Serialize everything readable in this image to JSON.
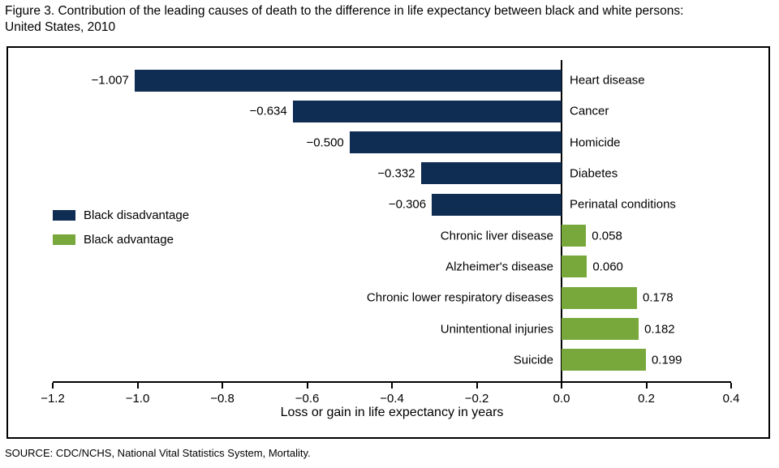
{
  "page": {
    "title_line1": "Figure 3. Contribution of the leading causes of death to the difference in life expectancy between black and white persons:",
    "title_line2": "United States, 2010",
    "source": "SOURCE: CDC/NCHS, National Vital Statistics System, Mortality."
  },
  "chart_data": {
    "type": "bar",
    "orientation": "horizontal",
    "title": "Figure 3. Contribution of the leading causes of death to the difference in life expectancy between black and white persons: United States, 2010",
    "xlabel": "Loss or gain in life expectancy in years",
    "xlim": [
      -1.2,
      0.4
    ],
    "xticks": [
      -1.2,
      -1.0,
      -0.8,
      -0.6,
      -0.4,
      -0.2,
      0.0,
      0.2,
      0.4
    ],
    "xtick_labels": [
      "−1.2",
      "−1.0",
      "−0.8",
      "−0.6",
      "−0.4",
      "−0.2",
      "0.0",
      "0.2",
      "0.4"
    ],
    "grid": false,
    "legend_position": "middle-left",
    "colors": {
      "black_disadvantage": "#0f2d52",
      "black_advantage": "#78a83c"
    },
    "legend": [
      {
        "label": "Black disadvantage",
        "color": "#0f2d52"
      },
      {
        "label": "Black advantage",
        "color": "#78a83c"
      }
    ],
    "rows": [
      {
        "category": "Heart disease",
        "value": -1.007,
        "label": "−1.007",
        "series": "black_disadvantage"
      },
      {
        "category": "Cancer",
        "value": -0.634,
        "label": "−0.634",
        "series": "black_disadvantage"
      },
      {
        "category": "Homicide",
        "value": -0.5,
        "label": "−0.500",
        "series": "black_disadvantage"
      },
      {
        "category": "Diabetes",
        "value": -0.332,
        "label": "−0.332",
        "series": "black_disadvantage"
      },
      {
        "category": "Perinatal conditions",
        "value": -0.306,
        "label": "−0.306",
        "series": "black_disadvantage"
      },
      {
        "category": "Chronic liver disease",
        "value": 0.058,
        "label": "0.058",
        "series": "black_advantage"
      },
      {
        "category": "Alzheimer's disease",
        "value": 0.06,
        "label": "0.060",
        "series": "black_advantage"
      },
      {
        "category": "Chronic lower respiratory diseases",
        "value": 0.178,
        "label": "0.178",
        "series": "black_advantage"
      },
      {
        "category": "Unintentional injuries",
        "value": 0.182,
        "label": "0.182",
        "series": "black_advantage"
      },
      {
        "category": "Suicide",
        "value": 0.199,
        "label": "0.199",
        "series": "black_advantage"
      }
    ]
  }
}
